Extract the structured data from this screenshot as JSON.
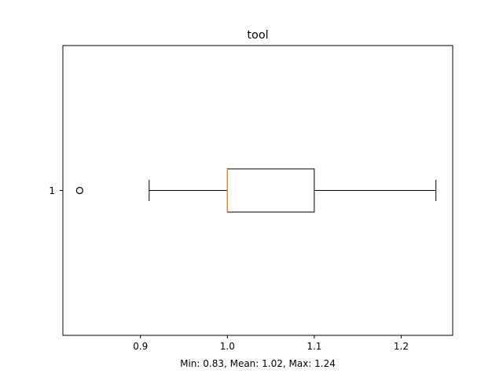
{
  "chart_data": {
    "type": "boxplot",
    "orientation": "horizontal",
    "title": "tool",
    "xlabel": "Min: 0.83, Mean: 1.02, Max: 1.24",
    "ylabel": "",
    "xlim": [
      0.8107,
      1.2593
    ],
    "x_ticks": [
      {
        "value": 0.9,
        "label": "0.9"
      },
      {
        "value": 1.0,
        "label": "1.0"
      },
      {
        "value": 1.1,
        "label": "1.1"
      },
      {
        "value": 1.2,
        "label": "1.2"
      }
    ],
    "categories": [
      "1"
    ],
    "boxes": [
      {
        "label": "1",
        "whisker_low": 0.91,
        "q1": 1.0,
        "median": 1.0,
        "q3": 1.1,
        "whisker_high": 1.24,
        "fliers": [
          0.83
        ]
      }
    ],
    "colors": {
      "box": "#000000",
      "median": "#ff7f0e",
      "flier": "#000000"
    },
    "grid": false
  }
}
